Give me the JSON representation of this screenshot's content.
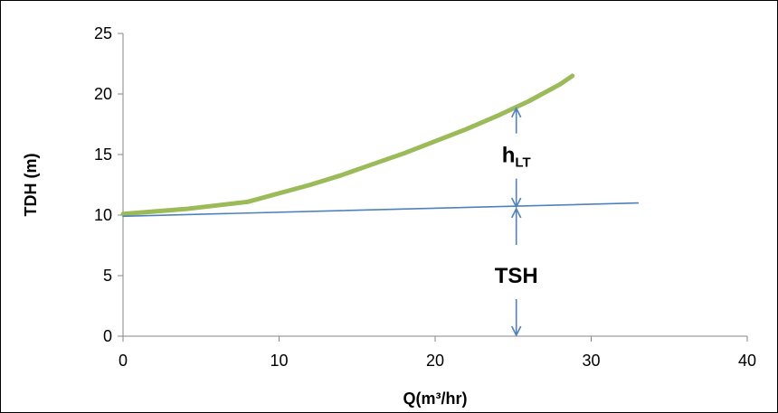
{
  "chart_data": {
    "type": "line",
    "title": "",
    "xlabel": "Q(m³/hr)",
    "ylabel": "TDH (m)",
    "xlim": [
      0,
      40
    ],
    "ylim": [
      0,
      25
    ],
    "x_ticks": [
      0,
      10,
      20,
      30,
      40
    ],
    "y_ticks": [
      0,
      5,
      10,
      15,
      20,
      25
    ],
    "grid": false,
    "legend": "none",
    "series": [
      {
        "color": "#9BBB59",
        "x": [
          0,
          2,
          4,
          6,
          8,
          10,
          12,
          14,
          16,
          18,
          20,
          22,
          24,
          26,
          28,
          28.8
        ],
        "y": [
          10.1,
          10.3,
          10.5,
          10.8,
          11.1,
          11.8,
          12.5,
          13.3,
          14.2,
          15.1,
          16.1,
          17.1,
          18.2,
          19.4,
          20.8,
          21.5
        ]
      },
      {
        "color": "#4F81BD",
        "x": [
          0,
          33
        ],
        "y": [
          9.9,
          11.0
        ]
      }
    ],
    "annotations": {
      "tsh": {
        "text": "TSH",
        "x": 25.2,
        "y": 5
      },
      "hlt": {
        "main": "h",
        "sub": "LT",
        "x": 25.2,
        "y": 14.8
      },
      "arrow_x": 25.2,
      "arrow_lower": {
        "from": 0,
        "to": 10.6
      },
      "arrow_upper": {
        "from": 10.6,
        "to": 18.9
      }
    }
  }
}
